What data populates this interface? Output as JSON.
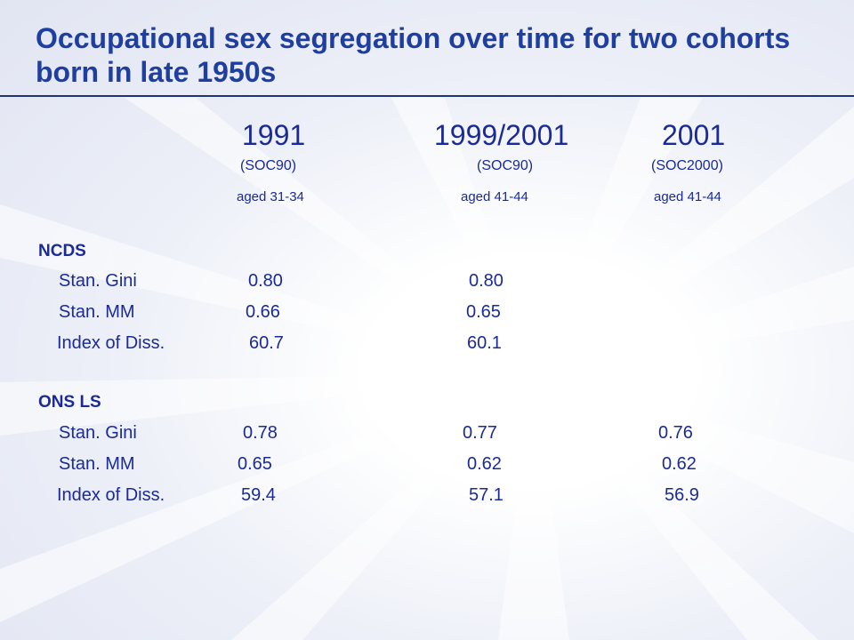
{
  "slide": {
    "title": "Occupational sex segregation over time for two cohorts born in late 1950s"
  },
  "columns": [
    {
      "year": "1991",
      "classification": "(SOC90)",
      "age": "aged 31-34"
    },
    {
      "year": "1999/2001",
      "classification": "(SOC90)",
      "age": "aged  41-44"
    },
    {
      "year": "2001",
      "classification": "(SOC2000)",
      "age": "aged  41-44"
    }
  ],
  "groups": [
    {
      "name": "NCDS",
      "rows": [
        {
          "label": "Stan. Gini",
          "values": [
            "0.80",
            "0.80",
            ""
          ]
        },
        {
          "label": "Stan. MM",
          "values": [
            "0.66",
            "0.65",
            ""
          ]
        },
        {
          "label": "Index of Diss.",
          "values": [
            "60.7",
            "60.1",
            ""
          ]
        }
      ]
    },
    {
      "name": "ONS LS",
      "rows": [
        {
          "label": "Stan. Gini",
          "values": [
            "0.78",
            "0.77",
            "0.76"
          ]
        },
        {
          "label": "Stan. MM",
          "values": [
            "0.65",
            "0.62",
            "0.62"
          ]
        },
        {
          "label": "Index of Diss.",
          "values": [
            "59.4",
            "57.1",
            "56.9"
          ]
        }
      ]
    }
  ],
  "colors": {
    "title": "#1f3fa0",
    "text": "#1a2a96",
    "rule": "#1f3470",
    "background": "#ffffff"
  }
}
